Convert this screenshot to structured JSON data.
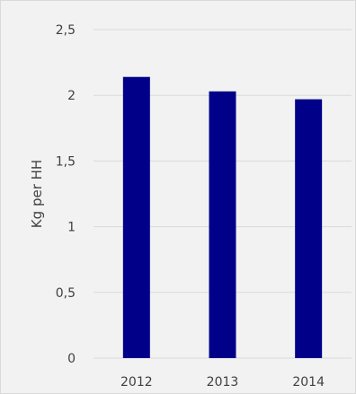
{
  "chart_data": {
    "type": "bar",
    "categories": [
      "2012",
      "2013",
      "2014"
    ],
    "values": [
      2.14,
      2.03,
      1.97
    ],
    "ylabel": "Kg per HH",
    "xlabel": "",
    "title": "",
    "ylim": [
      0,
      2.5
    ],
    "yticks": [
      0,
      0.5,
      1,
      1.5,
      2,
      2.5
    ],
    "ytick_labels": [
      "0",
      "0,5",
      "1",
      "1,5",
      "2",
      "2,5"
    ],
    "bar_color": "#000089",
    "grid": true,
    "legend": false
  }
}
